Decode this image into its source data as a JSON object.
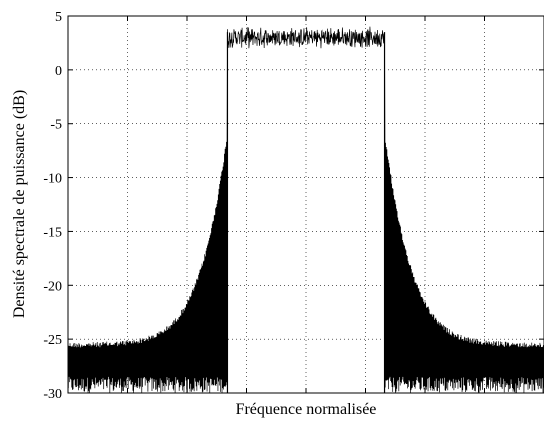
{
  "chart_data": {
    "type": "line",
    "xlabel": "Fréquence normalisée",
    "ylabel": "Densité spectrale de puissance (dB)",
    "title": "",
    "ylim": [
      -30,
      5
    ],
    "xlim": [
      0,
      1
    ],
    "yticks": [
      5,
      0,
      -5,
      -10,
      -15,
      -20,
      -25,
      -30
    ],
    "ytick_labels": [
      "5",
      "0",
      "-5",
      "-10",
      "-15",
      "-20",
      "-25",
      "-30"
    ],
    "xtick_count": 7,
    "grid": true,
    "x_tick_labels_shown": false,
    "series": [
      {
        "description_points": [
          {
            "x": 0.0,
            "y": -25.3
          },
          {
            "x": 0.1,
            "y": -24.8
          },
          {
            "x": 0.2,
            "y": -22.5
          },
          {
            "x": 0.28,
            "y": -17.0
          },
          {
            "x": 0.33,
            "y": -7.0
          },
          {
            "x": 0.335,
            "y": 3.0
          },
          {
            "x": 0.5,
            "y": 3.1
          },
          {
            "x": 0.665,
            "y": 3.0
          },
          {
            "x": 0.67,
            "y": -6.5
          },
          {
            "x": 0.72,
            "y": -17.0
          },
          {
            "x": 0.8,
            "y": -22.5
          },
          {
            "x": 0.9,
            "y": -24.8
          },
          {
            "x": 1.0,
            "y": -25.3
          }
        ],
        "passband": {
          "x_start": 0.335,
          "x_end": 0.665,
          "level_db": 3.0,
          "ripple_db": 0.8
        },
        "floor_db": -30,
        "color": "#000000"
      }
    ]
  }
}
